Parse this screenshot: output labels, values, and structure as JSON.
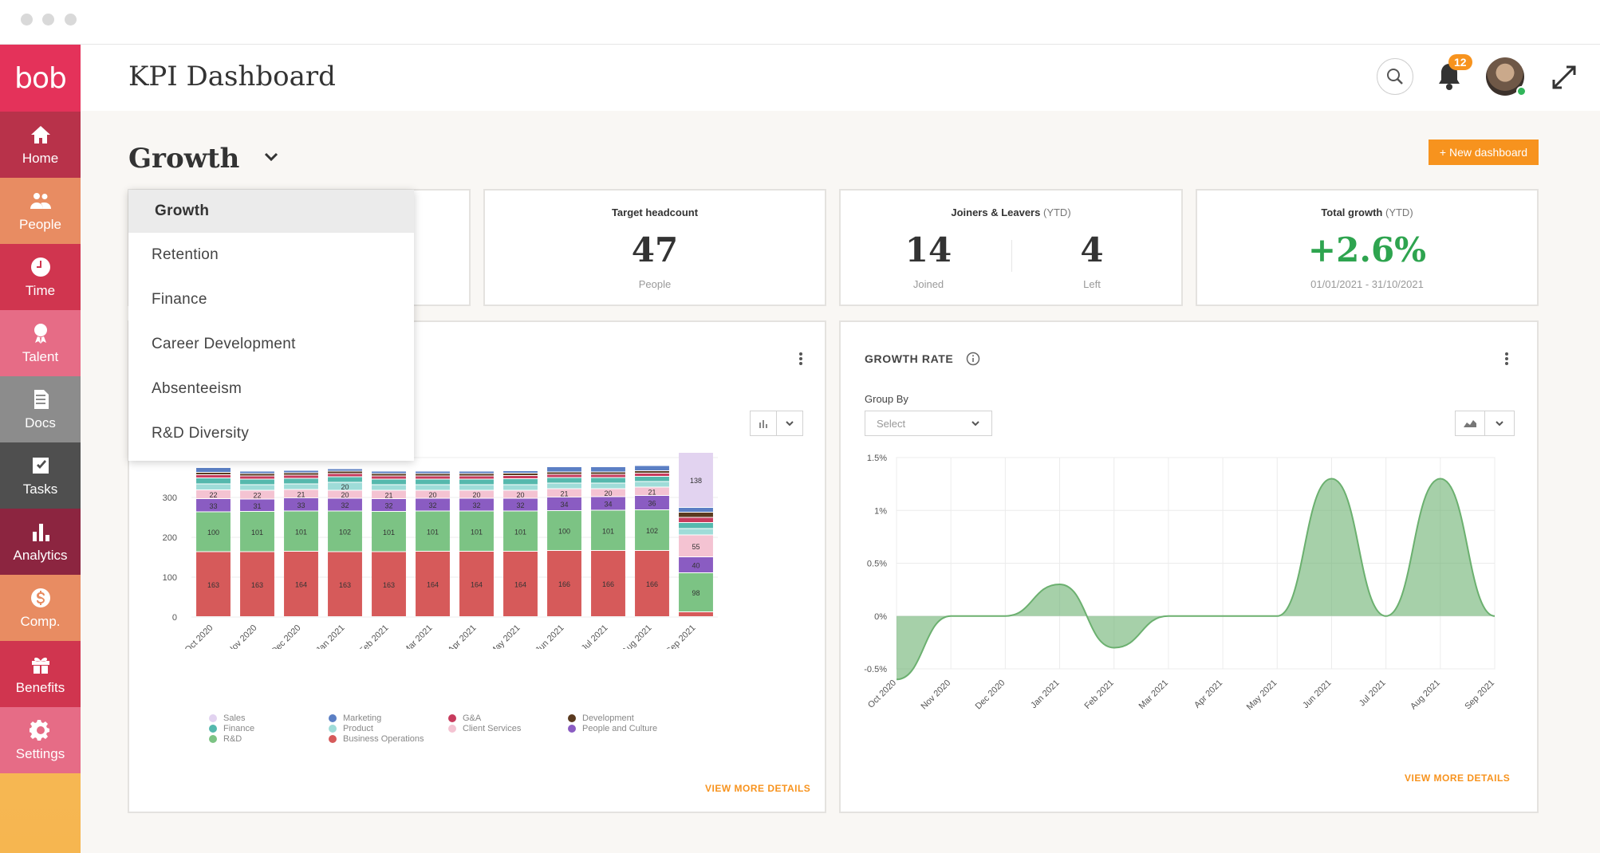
{
  "app": {
    "logo": "bob",
    "page_title": "KPI Dashboard"
  },
  "sidebar": {
    "items": [
      {
        "label": "Home",
        "icon": "home-icon",
        "color": "#b8324a"
      },
      {
        "label": "People",
        "icon": "people-icon",
        "color": "#e88c62"
      },
      {
        "label": "Time",
        "icon": "clock-icon",
        "color": "#d0354f"
      },
      {
        "label": "Talent",
        "icon": "talent-ribbon-icon",
        "color": "#e66c86"
      },
      {
        "label": "Docs",
        "icon": "docs-icon",
        "color": "#8c8c8c"
      },
      {
        "label": "Tasks",
        "icon": "tasks-checkbox-icon",
        "color": "#4f4f4f"
      },
      {
        "label": "Analytics",
        "icon": "analytics-bars-icon",
        "color": "#8c2540"
      },
      {
        "label": "Comp.",
        "icon": "dollar-icon",
        "color": "#e88c62"
      },
      {
        "label": "Benefits",
        "icon": "gift-icon",
        "color": "#d0354f"
      },
      {
        "label": "Settings",
        "icon": "gear-icon",
        "color": "#e66c86"
      }
    ]
  },
  "header": {
    "notifications": "12"
  },
  "dashboard": {
    "title": "Growth",
    "new_button": "+ New dashboard",
    "menu": [
      "Growth",
      "Retention",
      "Finance",
      "Career Development",
      "Absenteeism",
      "R&D Diversity"
    ]
  },
  "kpis": {
    "target": {
      "title": "Target headcount",
      "value": "47",
      "unit": "People"
    },
    "joiners": {
      "title": "Joiners & Leavers",
      "ytd": "(YTD)",
      "joined_value": "14",
      "joined_label": "Joined",
      "left_value": "4",
      "left_label": "Left"
    },
    "growth": {
      "title": "Total growth",
      "ytd": "(YTD)",
      "value": "+2.6%",
      "range": "01/01/2021 - 31/10/2021"
    }
  },
  "headcount_chart": {
    "view_more": "VIEW MORE DETAILS"
  },
  "growth_chart": {
    "title": "GROWTH RATE",
    "group_by_label": "Group By",
    "select_placeholder": "Select",
    "view_more": "VIEW MORE DETAILS"
  },
  "chart_data": [
    {
      "type": "bar",
      "stacked": true,
      "categories": [
        "Oct 2020",
        "Nov 2020",
        "Dec 2020",
        "Jan 2021",
        "Feb 2021",
        "Mar 2021",
        "Apr 2021",
        "May 2021",
        "Jun 2021",
        "Jul 2021",
        "Aug 2021",
        "Sep 2021"
      ],
      "ylim": [
        0,
        400
      ],
      "yticks": [
        0,
        100,
        200,
        300,
        400
      ],
      "series": [
        {
          "name": "Business Operations",
          "color": "#d65a5a",
          "values": [
            163,
            163,
            164,
            163,
            163,
            164,
            164,
            164,
            166,
            166,
            166,
            12
          ]
        },
        {
          "name": "R&D",
          "color": "#7cc384",
          "values": [
            100,
            101,
            101,
            102,
            101,
            101,
            101,
            101,
            100,
            101,
            102,
            98
          ]
        },
        {
          "name": "People and Culture",
          "color": "#8a5cc2",
          "values": [
            33,
            31,
            33,
            32,
            32,
            32,
            32,
            32,
            34,
            34,
            36,
            40
          ]
        },
        {
          "name": "Client Services",
          "color": "#f4c3d2",
          "values": [
            22,
            22,
            21,
            20,
            21,
            20,
            20,
            20,
            21,
            20,
            21,
            55
          ]
        },
        {
          "name": "Product",
          "color": "#9fdcd8",
          "values": [
            15,
            14,
            14,
            20,
            14,
            14,
            14,
            14,
            14,
            14,
            14,
            16
          ]
        },
        {
          "name": "Finance",
          "color": "#55b8ad",
          "values": [
            15,
            14,
            14,
            14,
            14,
            14,
            14,
            15,
            14,
            14,
            13,
            15
          ]
        },
        {
          "name": "G&A",
          "color": "#c73b5d",
          "values": [
            8,
            8,
            8,
            8,
            8,
            8,
            8,
            8,
            8,
            8,
            8,
            13
          ]
        },
        {
          "name": "Development",
          "color": "#5a3a1f",
          "values": [
            6,
            6,
            6,
            6,
            6,
            6,
            6,
            6,
            6,
            6,
            6,
            13
          ]
        },
        {
          "name": "Marketing",
          "color": "#5b7fc4",
          "values": [
            12,
            6,
            6,
            6,
            6,
            6,
            6,
            6,
            13,
            13,
            13,
            12
          ]
        },
        {
          "name": "Sales",
          "color": "#e2d3f0",
          "values": [
            0,
            0,
            0,
            0,
            0,
            0,
            0,
            0,
            0,
            0,
            0,
            138
          ]
        }
      ],
      "legend": [
        [
          "Sales",
          "Finance",
          "R&D"
        ],
        [
          "Marketing",
          "Product",
          "Business Operations"
        ],
        [
          "G&A",
          "Client Services"
        ],
        [
          "Development",
          "People and Culture"
        ]
      ]
    },
    {
      "type": "area",
      "title": "GROWTH RATE",
      "categories": [
        "Oct 2020",
        "Nov 2020",
        "Dec 2020",
        "Jan 2021",
        "Feb 2021",
        "Mar 2021",
        "Apr 2021",
        "May 2021",
        "Jun 2021",
        "Jul 2021",
        "Aug 2021",
        "Sep 2021"
      ],
      "values": [
        -0.6,
        0,
        0,
        0.3,
        -0.3,
        0,
        0,
        0,
        1.3,
        0,
        1.3,
        0
      ],
      "ylim": [
        -0.5,
        1.5
      ],
      "yticks": [
        "1.5%",
        "1%",
        "0.5%",
        "0%",
        "-0.5%"
      ],
      "color": "#6bb06f"
    }
  ]
}
